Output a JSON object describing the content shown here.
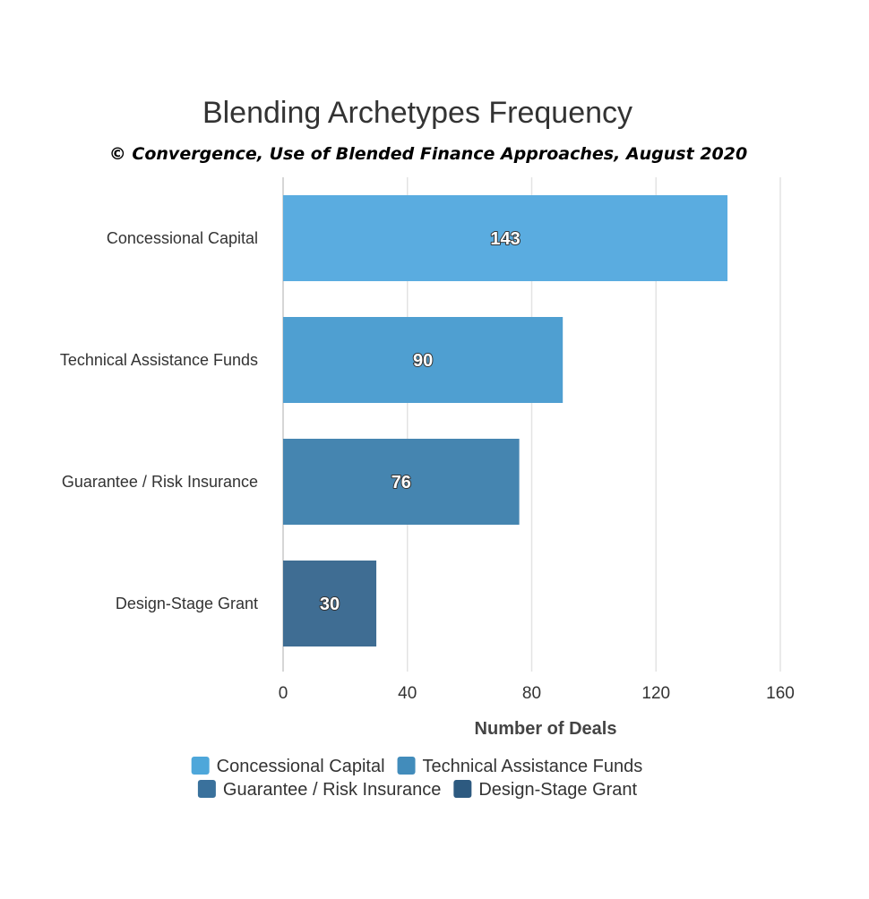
{
  "chart_data": {
    "type": "bar",
    "orientation": "horizontal",
    "title": "Blending Archetypes Frequency",
    "subtitle": "© Convergence, Use of Blended Finance Approaches, August 2020",
    "categories": [
      "Concessional Capital",
      "Technical Assistance Funds",
      "Guarantee / Risk Insurance",
      "Design-Stage Grant"
    ],
    "values": [
      143,
      90,
      76,
      30
    ],
    "data_labels": [
      "143",
      "90",
      "76",
      "30"
    ],
    "colors": [
      "#5aace0",
      "#4f9fd1",
      "#4585b0",
      "#3f6d93"
    ],
    "xlabel": "Number of Deals",
    "ylabel": "",
    "xlim": [
      0,
      160
    ],
    "xticks": [
      0,
      40,
      80,
      120,
      160
    ],
    "xtick_labels": [
      "0",
      "40",
      "80",
      "120",
      "160"
    ],
    "grid": "vertical",
    "legend": {
      "placement": "bottom-center",
      "items": [
        {
          "label": "Concessional Capital",
          "color": "#4ea7da"
        },
        {
          "label": "Technical Assistance Funds",
          "color": "#428cbb"
        },
        {
          "label": "Guarantee / Risk Insurance",
          "color": "#3a719c"
        },
        {
          "label": "Design-Stage Grant",
          "color": "#2d5a80"
        }
      ]
    }
  }
}
